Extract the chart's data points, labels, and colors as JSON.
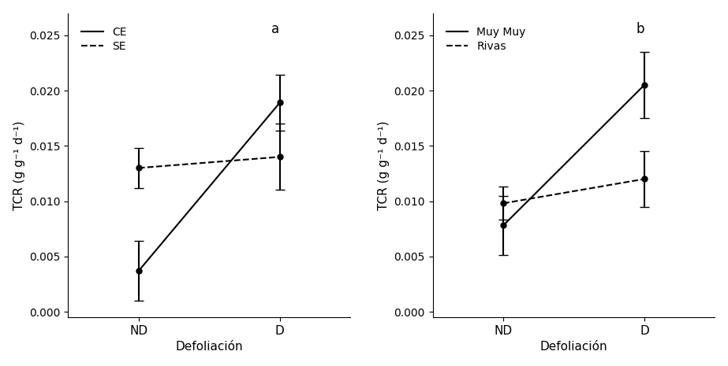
{
  "panel_a": {
    "label": "a",
    "series": [
      {
        "name": "CE",
        "linestyle": "solid",
        "x": [
          0,
          1
        ],
        "y": [
          0.0037,
          0.0189
        ],
        "yerr": [
          0.0027,
          0.0025
        ],
        "marker": "o",
        "color": "black"
      },
      {
        "name": "SE",
        "linestyle": "dashed",
        "x": [
          0,
          1
        ],
        "y": [
          0.013,
          0.014
        ],
        "yerr": [
          0.0018,
          0.003
        ],
        "marker": "o",
        "color": "black"
      }
    ],
    "xticks": [
      0,
      1
    ],
    "xticklabels": [
      "ND",
      "D"
    ],
    "xlabel": "Defoliación",
    "ylabel": "TCR (g g⁻¹ d⁻¹)",
    "ylim": [
      -0.0005,
      0.027
    ],
    "yticks": [
      0.0,
      0.005,
      0.01,
      0.015,
      0.02,
      0.025
    ]
  },
  "panel_b": {
    "label": "b",
    "series": [
      {
        "name": "Muy Muy",
        "linestyle": "solid",
        "x": [
          0,
          1
        ],
        "y": [
          0.0078,
          0.0205
        ],
        "yerr": [
          0.0027,
          0.003
        ],
        "marker": "o",
        "color": "black"
      },
      {
        "name": "Rivas",
        "linestyle": "dashed",
        "x": [
          0,
          1
        ],
        "y": [
          0.0098,
          0.012
        ],
        "yerr": [
          0.0015,
          0.0025
        ],
        "marker": "o",
        "color": "black"
      }
    ],
    "xticks": [
      0,
      1
    ],
    "xticklabels": [
      "ND",
      "D"
    ],
    "xlabel": "Defoliación",
    "ylabel": "TCR (g g⁻¹ d⁻¹)",
    "ylim": [
      -0.0005,
      0.027
    ],
    "yticks": [
      0.0,
      0.005,
      0.01,
      0.015,
      0.02,
      0.025
    ]
  },
  "background_color": "white",
  "font_size": 11,
  "marker_size": 5,
  "linewidth": 1.5,
  "capsize": 4,
  "elinewidth": 1.5
}
